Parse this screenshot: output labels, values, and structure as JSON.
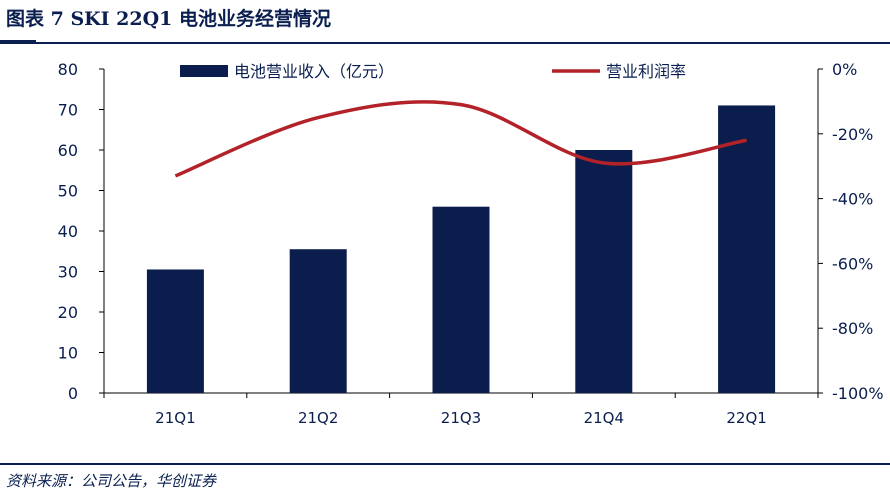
{
  "figure": {
    "title": "图表 7  SKI 22Q1 电池业务经营情况",
    "source": "资料来源：公司公告，华创证券"
  },
  "colors": {
    "bar": "#0b1d4d",
    "line": "#b22228",
    "axis": "#000000",
    "text": "#0a1f4f"
  },
  "chart_data": {
    "type": "bar",
    "categories": [
      "21Q1",
      "21Q2",
      "21Q3",
      "21Q4",
      "22Q1"
    ],
    "series": [
      {
        "name": "电池营业收入（亿元）",
        "type": "bar",
        "axis": "left",
        "values": [
          30.5,
          35.5,
          46,
          60,
          71
        ]
      },
      {
        "name": "营业利润率",
        "type": "line",
        "axis": "right",
        "smooth": true,
        "values": [
          -33,
          -15,
          -11,
          -29,
          -22
        ]
      }
    ],
    "ylim": [
      0,
      80
    ],
    "y_ticks": [
      "0",
      "10",
      "20",
      "30",
      "40",
      "50",
      "60",
      "70",
      "80"
    ],
    "y2lim": [
      -100,
      0
    ],
    "y2_ticks": [
      "0%",
      "-20%",
      "-40%",
      "-60%",
      "-80%",
      "-100%"
    ],
    "grid": false,
    "legend": "top"
  }
}
